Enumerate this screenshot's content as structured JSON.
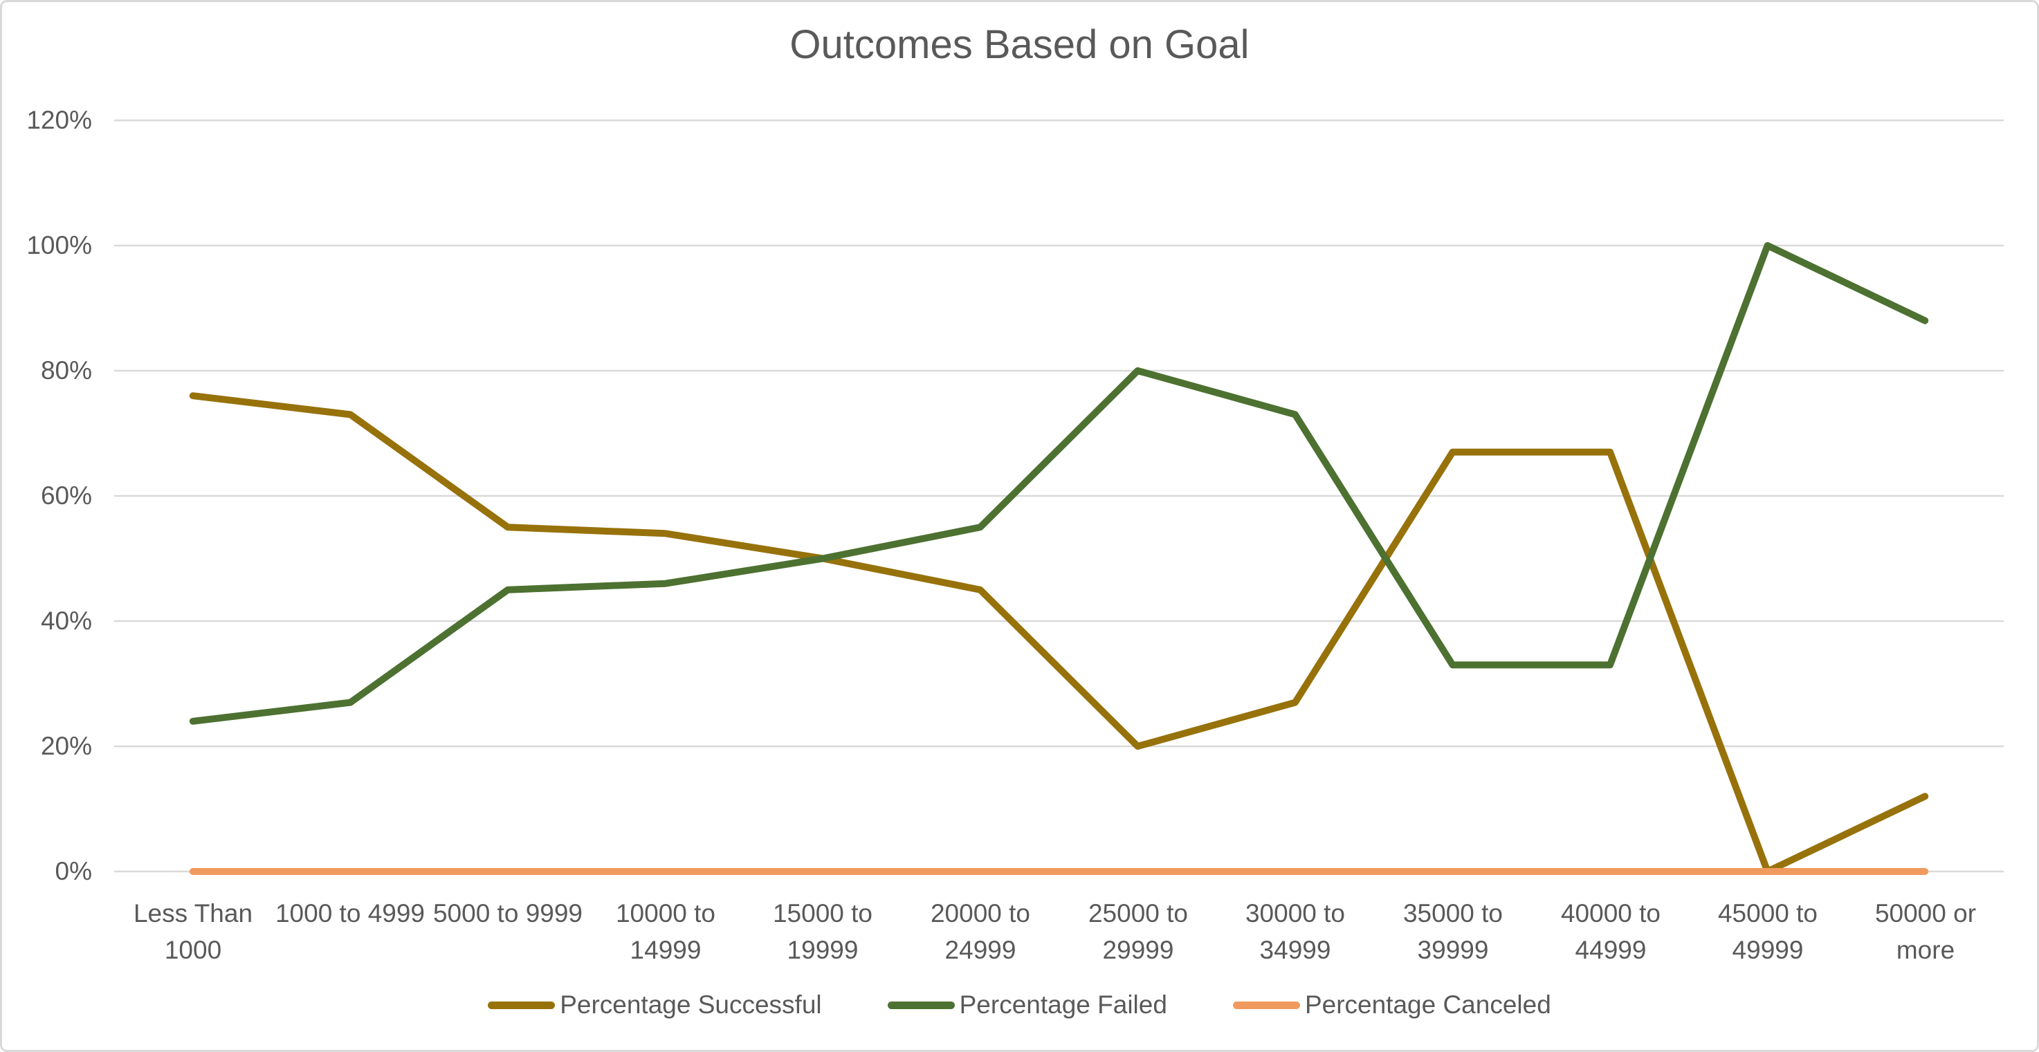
{
  "chart_data": {
    "type": "line",
    "title": "Outcomes Based on Goal",
    "categories": [
      "Less Than 1000",
      "1000 to 4999",
      "5000 to 9999",
      "10000 to 14999",
      "15000 to 19999",
      "20000 to 24999",
      "25000 to 29999",
      "30000 to 34999",
      "35000 to 39999",
      "40000 to 44999",
      "45000 to 49999",
      "50000 or more"
    ],
    "categories_wrapped": [
      "Less Than\n1000",
      "1000 to 4999",
      "5000 to 9999",
      "10000 to\n14999",
      "15000 to\n19999",
      "20000 to\n24999",
      "25000 to\n29999",
      "30000 to\n34999",
      "35000 to\n39999",
      "40000 to\n44999",
      "45000 to\n49999",
      "50000 or\nmore"
    ],
    "series": [
      {
        "name": "Percentage Successful",
        "color": "#97720B",
        "values": [
          76,
          73,
          55,
          54,
          50,
          45,
          20,
          27,
          67,
          67,
          0,
          12
        ]
      },
      {
        "name": "Percentage Failed",
        "color": "#4D7131",
        "values": [
          24,
          27,
          45,
          46,
          50,
          55,
          80,
          73,
          33,
          33,
          100,
          88
        ]
      },
      {
        "name": "Percentage Canceled",
        "color": "#F09A5E",
        "values": [
          0,
          0,
          0,
          0,
          0,
          0,
          0,
          0,
          0,
          0,
          0,
          0
        ]
      }
    ],
    "ytick_labels": [
      "120%",
      "100%",
      "80%",
      "60%",
      "40%",
      "20%",
      "0%"
    ],
    "ylim": [
      0,
      120
    ],
    "ytick_step": 20,
    "grid": true,
    "grid_color": "#D9D9D9",
    "text_color": "#595959",
    "background_color": "#FFFFFF",
    "border_color": "#D9D9D9",
    "legend_position": "bottom",
    "xlabel": "",
    "ylabel": ""
  }
}
